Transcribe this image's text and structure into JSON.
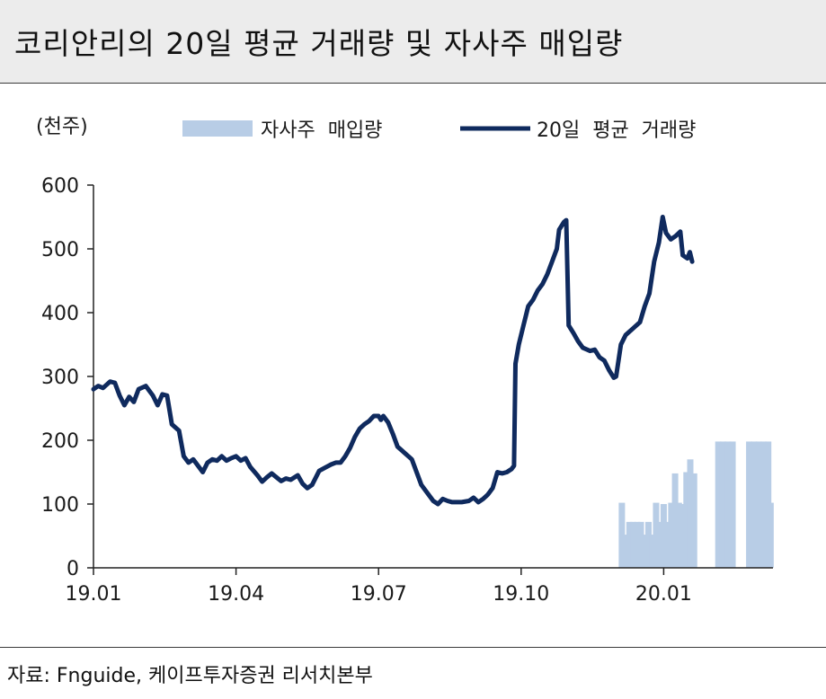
{
  "title": "코리안리의 20일 평균 거래량 및 자사주 매입량",
  "source": "자료: Fnguide, 케이프투자증권 리서치본부",
  "chart_data": {
    "type": "bar+line",
    "unit_label": "(천주)",
    "ylim": [
      0,
      600
    ],
    "yticks": [
      "0",
      "100",
      "200",
      "300",
      "400",
      "500",
      "600"
    ],
    "xlim": [
      0,
      14.3
    ],
    "xticks": [
      {
        "x": 0,
        "label": "19.01"
      },
      {
        "x": 3,
        "label": "19.04"
      },
      {
        "x": 6,
        "label": "19.07"
      },
      {
        "x": 9,
        "label": "19.10"
      },
      {
        "x": 12,
        "label": "20.01"
      }
    ],
    "grid": false,
    "legend_position": "top",
    "colors": {
      "bar": "#b8cde6",
      "line": "#0f2a5e"
    },
    "series": [
      {
        "name": "자사주  매입량",
        "type": "bar",
        "bars": [
          [
            11.12,
            102
          ],
          [
            11.2,
            52
          ],
          [
            11.28,
            72
          ],
          [
            11.36,
            72
          ],
          [
            11.44,
            72
          ],
          [
            11.52,
            72
          ],
          [
            11.6,
            52
          ],
          [
            11.68,
            72
          ],
          [
            11.76,
            52
          ],
          [
            11.84,
            102
          ],
          [
            11.92,
            72
          ],
          [
            12.0,
            100
          ],
          [
            12.08,
            72
          ],
          [
            12.16,
            102
          ],
          [
            12.24,
            148
          ],
          [
            12.32,
            102
          ],
          [
            12.4,
            100
          ],
          [
            12.48,
            150
          ],
          [
            12.56,
            170
          ],
          [
            12.64,
            148
          ],
          [
            13.15,
            198
          ],
          [
            13.25,
            198
          ],
          [
            13.35,
            198
          ],
          [
            13.45,
            198
          ],
          [
            13.8,
            198
          ],
          [
            13.9,
            198
          ],
          [
            14.0,
            198
          ],
          [
            14.1,
            198
          ],
          [
            14.2,
            198
          ],
          [
            14.25,
            102
          ]
        ]
      },
      {
        "name": "20일  평균  거래량",
        "type": "line",
        "points": [
          [
            0.0,
            280
          ],
          [
            0.1,
            285
          ],
          [
            0.2,
            282
          ],
          [
            0.35,
            292
          ],
          [
            0.45,
            290
          ],
          [
            0.55,
            270
          ],
          [
            0.65,
            255
          ],
          [
            0.75,
            268
          ],
          [
            0.85,
            260
          ],
          [
            0.95,
            280
          ],
          [
            1.1,
            285
          ],
          [
            1.25,
            270
          ],
          [
            1.35,
            255
          ],
          [
            1.45,
            272
          ],
          [
            1.55,
            270
          ],
          [
            1.65,
            225
          ],
          [
            1.8,
            215
          ],
          [
            1.9,
            175
          ],
          [
            2.0,
            165
          ],
          [
            2.1,
            170
          ],
          [
            2.2,
            160
          ],
          [
            2.3,
            150
          ],
          [
            2.4,
            165
          ],
          [
            2.5,
            170
          ],
          [
            2.6,
            168
          ],
          [
            2.7,
            175
          ],
          [
            2.8,
            168
          ],
          [
            2.9,
            172
          ],
          [
            3.0,
            175
          ],
          [
            3.1,
            168
          ],
          [
            3.2,
            172
          ],
          [
            3.3,
            158
          ],
          [
            3.45,
            145
          ],
          [
            3.55,
            135
          ],
          [
            3.65,
            142
          ],
          [
            3.75,
            148
          ],
          [
            3.85,
            142
          ],
          [
            3.95,
            136
          ],
          [
            4.05,
            140
          ],
          [
            4.15,
            138
          ],
          [
            4.3,
            145
          ],
          [
            4.4,
            132
          ],
          [
            4.5,
            125
          ],
          [
            4.6,
            130
          ],
          [
            4.75,
            152
          ],
          [
            4.9,
            158
          ],
          [
            5.0,
            162
          ],
          [
            5.1,
            165
          ],
          [
            5.2,
            165
          ],
          [
            5.3,
            175
          ],
          [
            5.4,
            188
          ],
          [
            5.5,
            205
          ],
          [
            5.6,
            218
          ],
          [
            5.7,
            225
          ],
          [
            5.8,
            230
          ],
          [
            5.9,
            238
          ],
          [
            6.0,
            238
          ],
          [
            6.05,
            232
          ],
          [
            6.1,
            238
          ],
          [
            6.2,
            228
          ],
          [
            6.3,
            210
          ],
          [
            6.4,
            190
          ],
          [
            6.55,
            180
          ],
          [
            6.7,
            170
          ],
          [
            6.8,
            150
          ],
          [
            6.9,
            130
          ],
          [
            7.05,
            115
          ],
          [
            7.15,
            105
          ],
          [
            7.25,
            100
          ],
          [
            7.35,
            108
          ],
          [
            7.45,
            105
          ],
          [
            7.55,
            103
          ],
          [
            7.75,
            103
          ],
          [
            7.9,
            105
          ],
          [
            8.0,
            110
          ],
          [
            8.1,
            103
          ],
          [
            8.2,
            108
          ],
          [
            8.3,
            115
          ],
          [
            8.4,
            125
          ],
          [
            8.5,
            150
          ],
          [
            8.6,
            148
          ],
          [
            8.7,
            150
          ],
          [
            8.8,
            155
          ],
          [
            8.85,
            160
          ],
          [
            8.88,
            320
          ],
          [
            8.95,
            350
          ],
          [
            9.05,
            380
          ],
          [
            9.15,
            410
          ],
          [
            9.25,
            420
          ],
          [
            9.35,
            435
          ],
          [
            9.45,
            445
          ],
          [
            9.55,
            460
          ],
          [
            9.65,
            480
          ],
          [
            9.75,
            500
          ],
          [
            9.8,
            530
          ],
          [
            9.9,
            542
          ],
          [
            9.95,
            545
          ],
          [
            10.0,
            380
          ],
          [
            10.1,
            368
          ],
          [
            10.2,
            355
          ],
          [
            10.3,
            345
          ],
          [
            10.45,
            340
          ],
          [
            10.55,
            342
          ],
          [
            10.65,
            330
          ],
          [
            10.75,
            325
          ],
          [
            10.85,
            310
          ],
          [
            10.95,
            298
          ],
          [
            11.0,
            300
          ],
          [
            11.1,
            350
          ],
          [
            11.2,
            365
          ],
          [
            11.35,
            375
          ],
          [
            11.5,
            385
          ],
          [
            11.6,
            410
          ],
          [
            11.7,
            430
          ],
          [
            11.8,
            480
          ],
          [
            11.9,
            510
          ],
          [
            11.98,
            550
          ],
          [
            12.05,
            525
          ],
          [
            12.15,
            515
          ],
          [
            12.25,
            520
          ],
          [
            12.35,
            527
          ],
          [
            12.4,
            490
          ],
          [
            12.5,
            485
          ],
          [
            12.55,
            495
          ],
          [
            12.6,
            480
          ]
        ]
      }
    ]
  }
}
